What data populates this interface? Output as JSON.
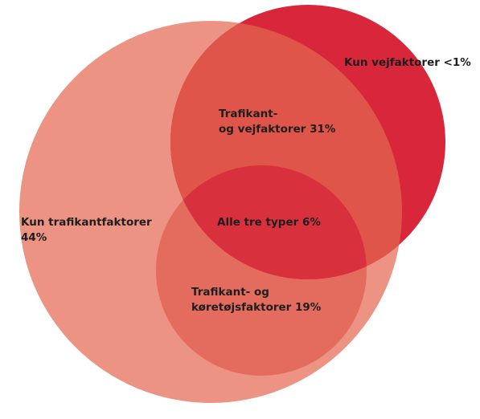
{
  "regions": [
    {
      "lines": [
        "Kun vejfaktorer <1%"
      ]
    },
    {
      "lines": [
        "Trafikant-",
        "og vejfaktorer 31%"
      ]
    },
    {
      "lines": [
        "Alle tre typer 6%"
      ]
    },
    {
      "lines": [
        "Kun trafikantfaktorer",
        "44%"
      ]
    },
    {
      "lines": [
        "Trafikant- og",
        "køretøjsfaktorer 19%"
      ]
    }
  ]
}
